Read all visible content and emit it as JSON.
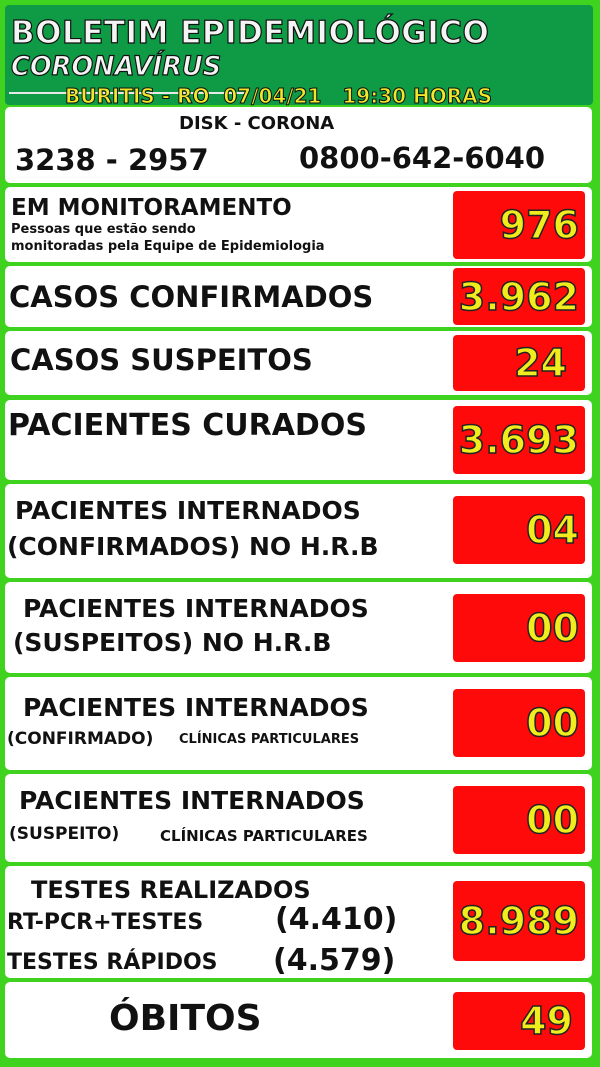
{
  "header": {
    "title": "BOLETIM EPIDEMIOLÓGICO",
    "subtitle": "CORONAVÍRUS",
    "location_date": "BURITIS - RO  07/04/21   19:30 HORAS"
  },
  "disk": {
    "title": "DISK - CORONA",
    "phone1": "3238 - 2957",
    "phone2": "0800-642-6040"
  },
  "monitoramento": {
    "label": "EM MONITORAMENTO",
    "desc1": "Pessoas que estão sendo",
    "desc2": "monitoradas pela Equipe de Epidemiologia",
    "value": "976"
  },
  "confirmados": {
    "label": "CASOS CONFIRMADOS",
    "value": "3.962"
  },
  "suspeitos": {
    "label": "CASOS SUSPEITOS",
    "value": "24"
  },
  "curados": {
    "label": "PACIENTES CURADOS",
    "value": "3.693"
  },
  "int_conf_hrb": {
    "label1": "PACIENTES INTERNADOS",
    "label2": "(CONFIRMADOS) NO H.R.B",
    "value": "04"
  },
  "int_susp_hrb": {
    "label1": "PACIENTES INTERNADOS",
    "label2": "(SUSPEITOS) NO H.R.B",
    "value": "00"
  },
  "int_conf_clin": {
    "label1": "PACIENTES INTERNADOS",
    "label2a": "(CONFIRMADO)",
    "label2b": "CLÍNICAS PARTICULARES",
    "value": "00"
  },
  "int_susp_clin": {
    "label1": "PACIENTES INTERNADOS",
    "label2a": "(SUSPEITO)",
    "label2b": "CLÍNICAS PARTICULARES",
    "value": "00"
  },
  "testes": {
    "label": "TESTES REALIZADOS",
    "rtpcr_label": "RT-PCR+TESTES",
    "rtpcr_value": "(4.410)",
    "rapidos_label": "TESTES RÁPIDOS",
    "rapidos_value": "(4.579)",
    "value": "8.989"
  },
  "obitos": {
    "label": "ÓBITOS",
    "value": "49"
  }
}
